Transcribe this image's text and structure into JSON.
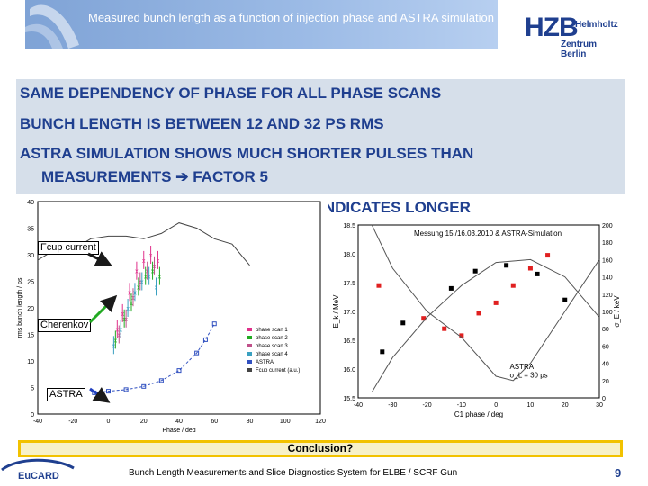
{
  "header": {
    "title": "Measured bunch length as a function of injection phase and ASTRA simulation"
  },
  "logo": {
    "text_big": "HZB",
    "text_line1": "Helmholtz",
    "text_line2": "Zentrum Berlin"
  },
  "bullets": [
    "SAME DEPENDENCY OF PHASE FOR ALL PHASE SCANS",
    "BUNCH LENGTH IS BETWEEN 12 AND 32 PS RMS",
    "ASTRA SIMULATION SHOWS MUCH SHORTER PULSES THAN",
    "MEASUREMENTS",
    "FACTOR 5",
    "T INDICATES LONGER"
  ],
  "callouts": {
    "fcup": "Fcup current",
    "cherenkov": "Cherenkov",
    "astra": "ASTRA"
  },
  "conclusion": "Conclusion?",
  "footer": {
    "text": "Bunch Length Measurements and Slice Diagnostics System for ELBE / SCRF Gun",
    "page": "9",
    "eucard_label": "EuCARD"
  },
  "chart_data": [
    {
      "type": "scatter",
      "xlabel": "Phase / deg",
      "ylabel": "rms bunch length / ps",
      "xlim": [
        -40,
        120
      ],
      "ylim": [
        0,
        40
      ],
      "x_ticks": [
        "-40",
        "-20",
        "0",
        "20",
        "40",
        "60",
        "80",
        "100",
        "120"
      ],
      "y_ticks": [
        "0",
        "5",
        "10",
        "15",
        "20",
        "25",
        "30",
        "35",
        "40"
      ],
      "legend": [
        "phase scan 1",
        "phase scan 2",
        "phase scan 3",
        "phase scan 4",
        "ASTRA",
        "Fcup current (a.u.)"
      ],
      "legend_position": "lower-right",
      "series": [
        {
          "name": "phase scan 1",
          "color": "#e0308a",
          "x": [
            5,
            8,
            12,
            16,
            20,
            24,
            28
          ],
          "y": [
            16,
            19,
            23,
            27,
            29,
            30,
            29
          ]
        },
        {
          "name": "phase scan 2",
          "color": "#22aa22",
          "x": [
            4,
            9,
            13,
            17,
            21,
            25,
            29
          ],
          "y": [
            14,
            18,
            21,
            24,
            26,
            27,
            26
          ]
        },
        {
          "name": "phase scan 3",
          "color": "#c0508a",
          "x": [
            6,
            10,
            14,
            18,
            22,
            26
          ],
          "y": [
            15,
            18,
            22,
            25,
            27,
            28
          ]
        },
        {
          "name": "phase scan 4",
          "color": "#3aa0c0",
          "x": [
            3,
            7,
            11,
            15,
            19,
            23,
            27
          ],
          "y": [
            13,
            16,
            20,
            23,
            25,
            26,
            24
          ]
        },
        {
          "name": "ASTRA",
          "color": "#3050c0",
          "x": [
            -8,
            0,
            10,
            20,
            30,
            40,
            50,
            55,
            60
          ],
          "y": [
            4,
            4.3,
            4.6,
            5.2,
            6.3,
            8.2,
            11.5,
            14,
            17
          ]
        },
        {
          "name": "Fcup current (a.u.)",
          "color": "#444444",
          "x": [
            -40,
            -30,
            -20,
            -10,
            0,
            10,
            20,
            30,
            40,
            50,
            60,
            70,
            80
          ],
          "y": [
            29,
            31,
            31,
            33,
            33.5,
            33.5,
            33,
            34,
            36,
            35,
            33,
            32,
            28
          ]
        }
      ]
    },
    {
      "type": "line",
      "title": "Messung 15./16.03.2010 & ASTRA-Simulation",
      "xlabel": "C1 phase / deg",
      "ylabel": "E_k / MeV",
      "y2label": "σ_E / keV",
      "xlim": [
        -40,
        30
      ],
      "ylim": [
        15.5,
        18.5
      ],
      "y2lim": [
        0,
        200
      ],
      "x_ticks": [
        "-40",
        "-30",
        "-20",
        "-10",
        "0",
        "10",
        "20",
        "30"
      ],
      "y_ticks": [
        "15.5",
        "16.0",
        "16.5",
        "17.0",
        "17.5",
        "18.0",
        "18.5"
      ],
      "y2_ticks": [
        "0",
        "20",
        "40",
        "60",
        "80",
        "100",
        "120",
        "140",
        "160",
        "180",
        "200"
      ],
      "annotation": [
        "ASTRA",
        "σ_L = 30 ps"
      ],
      "series": [
        {
          "name": "energy (measured)",
          "color": "#000000",
          "x": [
            -33,
            -27,
            -13,
            -6,
            3,
            12,
            20
          ],
          "y": [
            16.3,
            16.8,
            17.4,
            17.7,
            17.8,
            17.65,
            17.2
          ]
        },
        {
          "name": "energy spread (measured)",
          "color": "#e02020",
          "x": [
            -34,
            -21,
            -15,
            -10,
            -5,
            0,
            5,
            10,
            15
          ],
          "y": [
            130,
            92,
            80,
            72,
            98,
            110,
            130,
            150,
            165
          ]
        },
        {
          "name": "ASTRA energy",
          "color": "#555555",
          "x": [
            -36,
            -30,
            -20,
            -10,
            0,
            10,
            20,
            30
          ],
          "y": [
            15.6,
            16.2,
            16.9,
            17.45,
            17.85,
            17.9,
            17.6,
            16.9
          ]
        },
        {
          "name": "ASTRA energy spread",
          "color": "#555555",
          "x": [
            -36,
            -30,
            -20,
            -10,
            0,
            5,
            10,
            20,
            30
          ],
          "y": [
            200,
            150,
            100,
            70,
            25,
            20,
            40,
            100,
            160
          ]
        }
      ]
    }
  ]
}
